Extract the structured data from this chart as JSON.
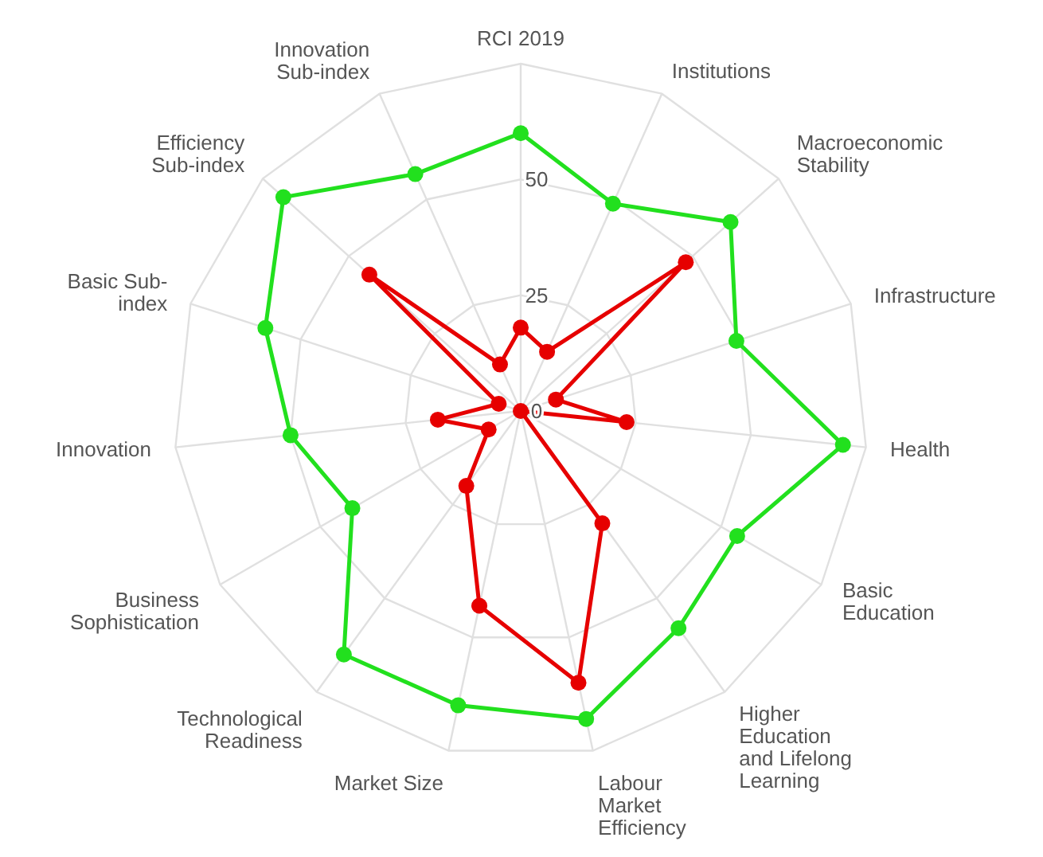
{
  "chart_data": {
    "type": "radar",
    "categories": [
      "RCI 2019",
      "Institutions",
      "Macroeconomic Stability",
      "Infrastructure",
      "Health",
      "Basic Education",
      "Higher Education and Lifelong Learning",
      "Labour Market Efficiency",
      "Market Size",
      "Technological Readiness",
      "Business Sophistication",
      "Innovation",
      "Basic Sub-index",
      "Efficiency Sub-index",
      "Innovation Sub-index"
    ],
    "series": [
      {
        "color": "#22e01e",
        "values": [
          60,
          49,
          61,
          49,
          70,
          54,
          58,
          68,
          65,
          65,
          42,
          50,
          58,
          69,
          56
        ]
      },
      {
        "color": "#e60000",
        "values": [
          18,
          14,
          48,
          8,
          23,
          0,
          30,
          60,
          43,
          20,
          8,
          18,
          5,
          44,
          11
        ]
      }
    ],
    "ylim": [
      0,
      75
    ],
    "yticks": [
      0,
      25,
      50
    ],
    "grid": true,
    "marker": "circle",
    "line_style": "solid"
  }
}
